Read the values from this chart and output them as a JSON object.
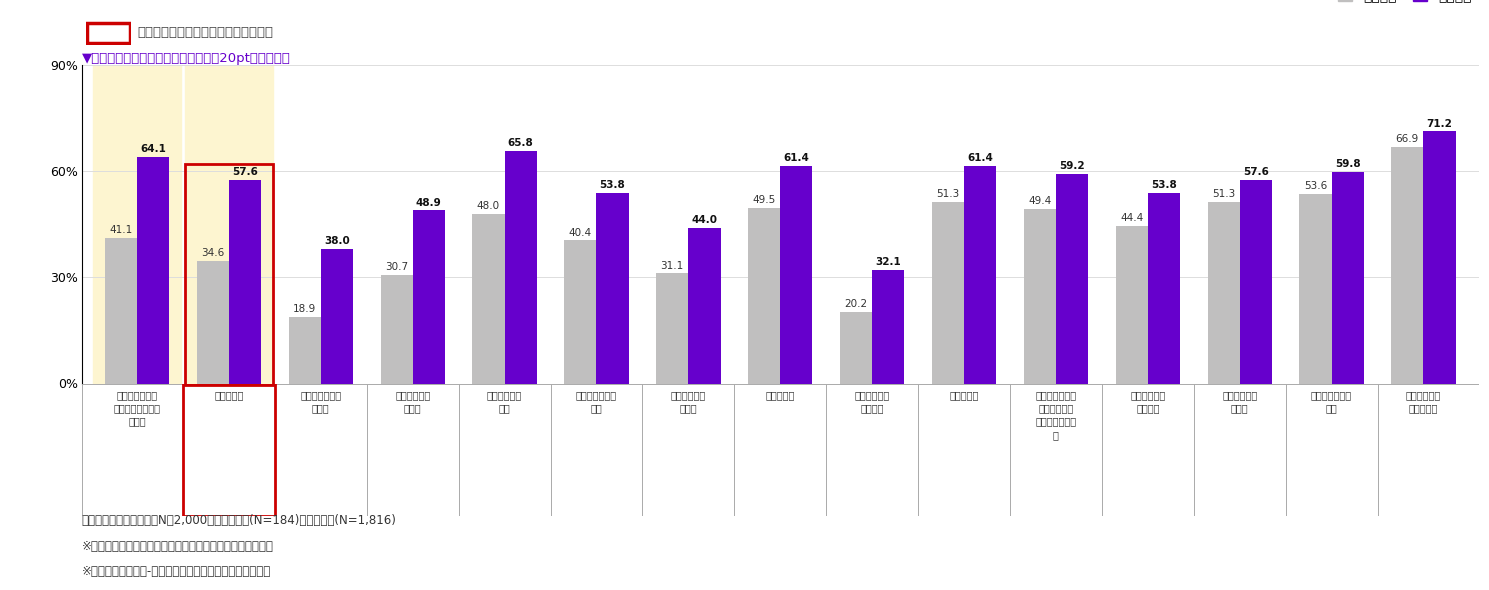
{
  "categories": [
    "遊び心やクリエ\nイティビティを感\nじたい",
    "挑戦したい",
    "自分をアピール\nしたい",
    "優越感を味わ\nいたい",
    "理想を実現し\nたい",
    "人から認められ\nたい",
    "人から尊敬さ\nれたい",
    "達成したい",
    "誰かに影響を\n与えたい",
    "成長したい",
    "夢やロマン、感\n動、興奮など\n心を動かされた\nい",
    "疏外感を感じ\nたくない",
    "好奇心を満た\nしたい",
    "人に嫌われたく\nない",
    "制限されず自\n由にしたい"
  ],
  "nashi": [
    41.1,
    34.6,
    18.9,
    30.7,
    48.0,
    40.4,
    31.1,
    49.5,
    20.2,
    51.3,
    49.4,
    44.4,
    51.3,
    53.6,
    66.9
  ],
  "ari": [
    64.1,
    57.6,
    38.0,
    48.9,
    65.8,
    53.8,
    44.0,
    61.4,
    32.1,
    61.4,
    59.2,
    53.8,
    57.6,
    59.8,
    71.2
  ],
  "highlighted": [
    0,
    1
  ],
  "highlight_bg": "#fdf5d0",
  "bar_color_nashi": "#c0bfbf",
  "bar_color_ari": "#6600cc",
  "bar_width": 0.35,
  "ylim": [
    0,
    90
  ],
  "yticks": [
    0,
    30,
    60,
    90
  ],
  "ytick_labels": [
    "0%",
    "30%",
    "60%",
    "90%"
  ],
  "legend_nashi": "体験なし",
  "legend_ari": "体験あり",
  "top_note": "アーリーアダプターの特徴を示す項目",
  "subtitle": "▼「体験あり」－「体験なし」の差が20pt以上の項目",
  "footnote1": "基数：調査対象者全体（N＝2,000）、体験あり(N=184)、体験なし(N=1,816)",
  "footnote2": "※スコアは「非常にあてはまる」＋「ややあてはまる」の計",
  "footnote3": "※項目は《体験あり-体験なし》の差が大きい順に並び替え",
  "red_box_color": "#cc0000"
}
